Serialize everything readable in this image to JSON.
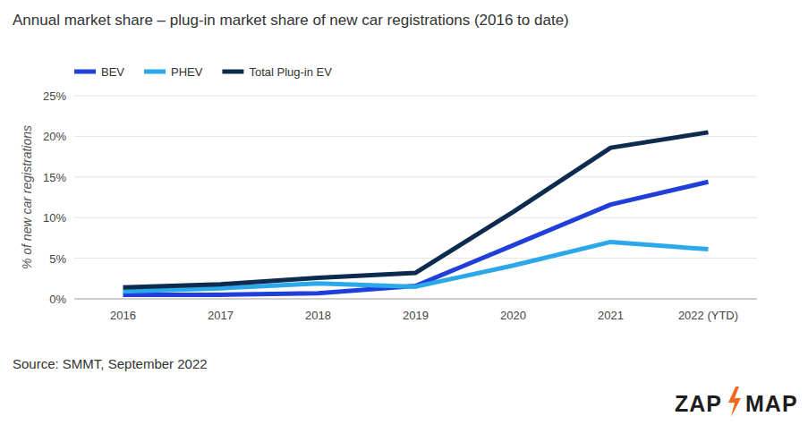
{
  "chart_data": {
    "type": "line",
    "title": "Annual market share – plug-in market share of new car registrations (2016 to date)",
    "y_label": "% of new car registrations",
    "source": "Source: SMMT, September 2022",
    "logo": [
      "ZAP",
      "MAP"
    ],
    "categories": [
      "2016",
      "2017",
      "2018",
      "2019",
      "2020",
      "2021",
      "2022 (YTD)"
    ],
    "series": [
      {
        "name": "BEV",
        "color": "#1f3fd8",
        "values": [
          0.5,
          0.5,
          0.7,
          1.6,
          6.6,
          11.6,
          14.4
        ]
      },
      {
        "name": "PHEV",
        "color": "#2aa8ea",
        "values": [
          0.9,
          1.3,
          1.9,
          1.5,
          4.1,
          7.0,
          6.1
        ]
      },
      {
        "name": "Total Plug-in EV",
        "color": "#0d2b4e",
        "values": [
          1.4,
          1.8,
          2.6,
          3.2,
          10.7,
          18.6,
          20.5
        ]
      }
    ],
    "ylim": [
      0,
      25
    ],
    "yticks": [
      {
        "value": 0,
        "label": "0%"
      },
      {
        "value": 5,
        "label": "5%"
      },
      {
        "value": 10,
        "label": "10%"
      },
      {
        "value": 15,
        "label": "15%"
      },
      {
        "value": 20,
        "label": "20%"
      },
      {
        "value": 25,
        "label": "25%"
      }
    ],
    "grid": true,
    "legend": "top-left"
  }
}
